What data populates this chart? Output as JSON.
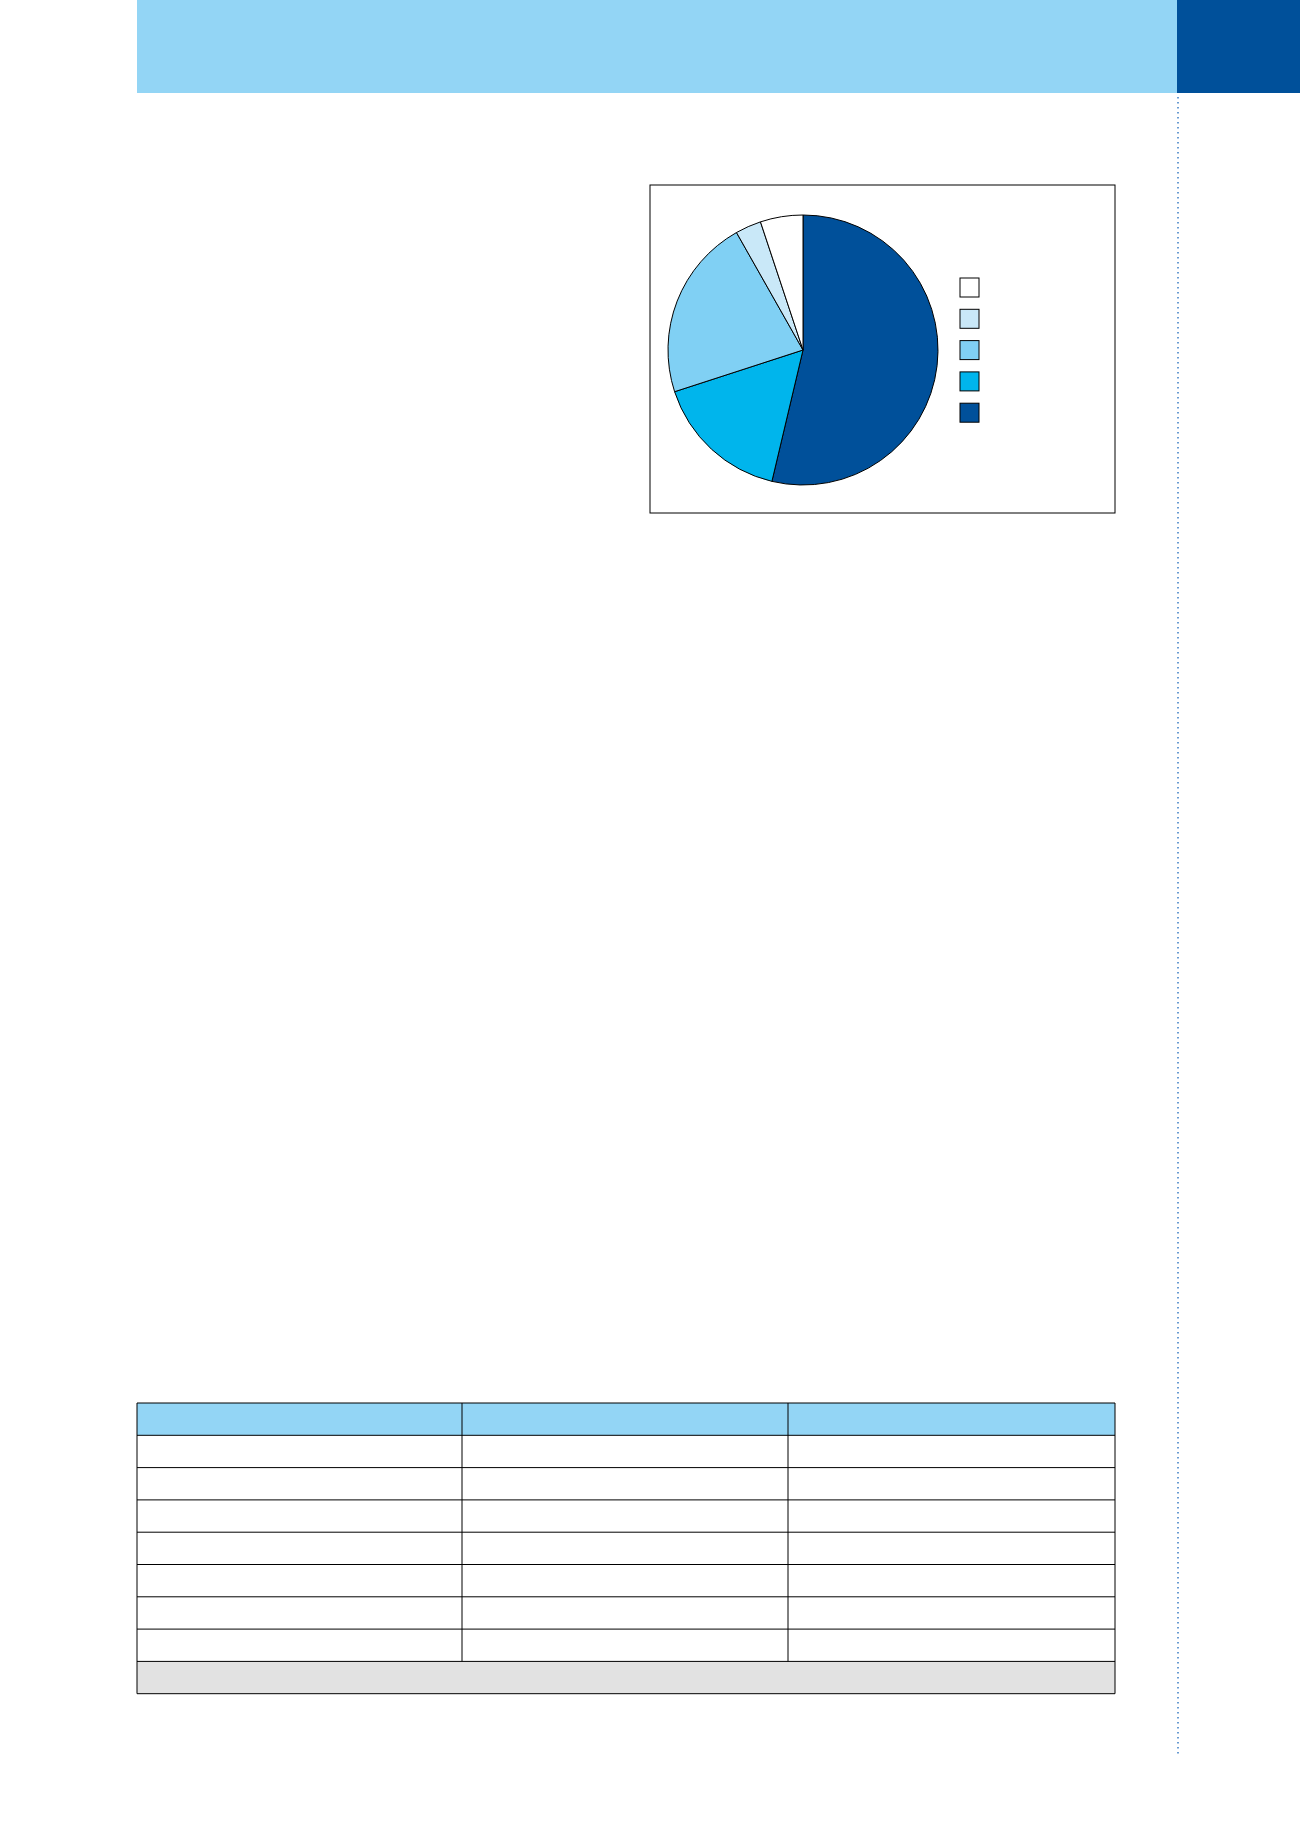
{
  "chart_data": {
    "type": "pie",
    "categories": [
      null,
      null,
      null,
      null,
      null
    ],
    "values": [
      53.7,
      16.3,
      21.8,
      3.1,
      5.1
    ],
    "colors": [
      "#00509a",
      "#00b5ec",
      "#80d0f4",
      "#c9e8f8",
      "#ffffff"
    ]
  }
}
